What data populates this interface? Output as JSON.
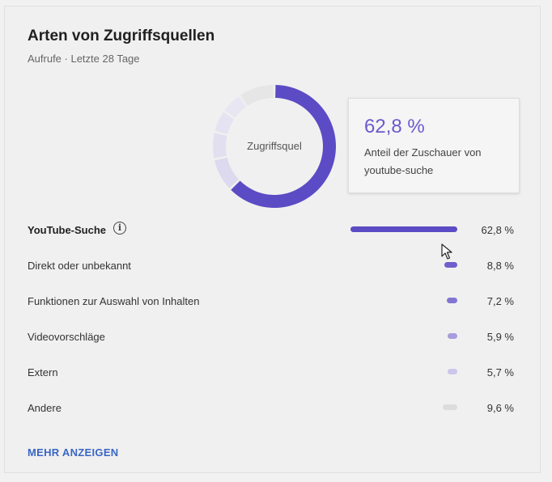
{
  "card": {
    "title": "Arten von Zugriffsquellen",
    "subtitle": "Aufrufe · Letzte 28 Tage"
  },
  "donut": {
    "center_label": "Zugriffsquel",
    "segments": [
      {
        "value": 62.8,
        "color": "#5b4bc4"
      },
      {
        "value": 8.8,
        "color": "#ddd9ee"
      },
      {
        "value": 7.2,
        "color": "#e2dff0"
      },
      {
        "value": 5.9,
        "color": "#e5e3f1"
      },
      {
        "value": 5.7,
        "color": "#e8e6f2"
      },
      {
        "value": 9.6,
        "color": "#e6e6e6"
      }
    ]
  },
  "tooltip": {
    "value": "62,8 %",
    "description": "Anteil der Zuschauer von youtube-suche"
  },
  "rows": [
    {
      "label": "YouTube-Suche",
      "percent_text": "62,8 %",
      "value": 62.8,
      "color": "#5b4bc4",
      "bold": true
    },
    {
      "label": "Direkt oder unbekannt",
      "percent_text": "8,8 %",
      "value": 8.8,
      "color": "#6e5fcc",
      "bold": false
    },
    {
      "label": "Funktionen zur Auswahl von Inhalten",
      "percent_text": "7,2 %",
      "value": 7.2,
      "color": "#8276d2",
      "bold": false
    },
    {
      "label": "Videovorschläge",
      "percent_text": "5,9 %",
      "value": 5.9,
      "color": "#a59ddc",
      "bold": false
    },
    {
      "label": "Extern",
      "percent_text": "5,7 %",
      "value": 5.7,
      "color": "#cbc6ea",
      "bold": false
    },
    {
      "label": "Andere",
      "percent_text": "9,6 %",
      "value": 9.6,
      "color": "#dcdcdc",
      "bold": false
    }
  ],
  "actions": {
    "more_label": "MEHR ANZEIGEN"
  },
  "icons": {
    "info": "info-icon",
    "cursor": "mouse-pointer-icon"
  }
}
